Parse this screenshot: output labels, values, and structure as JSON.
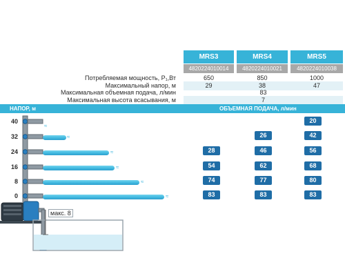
{
  "models": [
    {
      "name": "MRS3",
      "code": "4820224010014"
    },
    {
      "name": "MRS4",
      "code": "4820224010021"
    },
    {
      "name": "MRS5",
      "code": "4820224010038"
    }
  ],
  "specs": {
    "power": {
      "label": "Потребляемая мощность, P₁,Вт",
      "values": [
        "650",
        "850",
        "1000"
      ]
    },
    "head": {
      "label": "Максимальный напор, м",
      "values": [
        "29",
        "38",
        "47"
      ]
    },
    "flow": {
      "label": "Максимальная объемная подача, л/мин",
      "value": "83"
    },
    "suction": {
      "label": "Максимальная высота всасывания, м",
      "value": "7"
    }
  },
  "table_header": {
    "left": "НАПОР, м",
    "right": "ОБЪЕМНАЯ ПОДАЧА, л/мин"
  },
  "levels": [
    "40",
    "32",
    "24",
    "16",
    "8",
    "0"
  ],
  "flow_table": [
    [
      "",
      "",
      "20"
    ],
    [
      "",
      "26",
      "42"
    ],
    [
      "28",
      "46",
      "56"
    ],
    [
      "54",
      "62",
      "68"
    ],
    [
      "74",
      "77",
      "80"
    ],
    [
      "83",
      "83",
      "83"
    ]
  ],
  "pump_label": "макс. 8",
  "colors": {
    "accent": "#37b3d8",
    "badge": "#1f6da6",
    "code_bg": "#a8a8a8",
    "stripe": "#e3f1f6"
  },
  "icons": [
    "water-jet-icon",
    "pipe-icon",
    "pump-icon",
    "suction-pipe-icon"
  ]
}
